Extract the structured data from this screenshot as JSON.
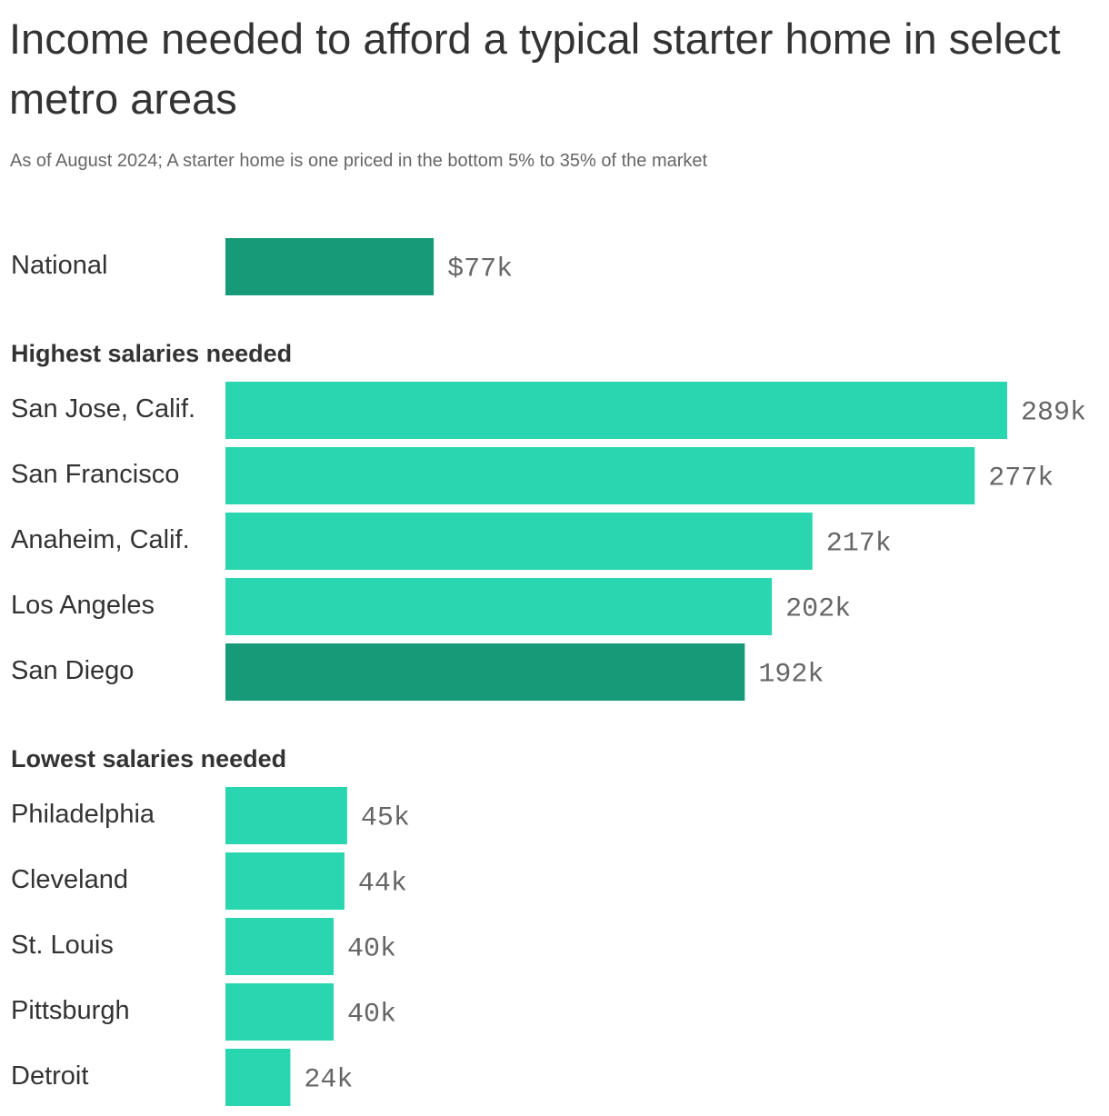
{
  "chart_data": {
    "type": "bar",
    "title": "Income needed to afford a typical starter home in select metro areas",
    "subtitle": "As of August 2024; A starter home is one priced in the bottom 5% to 35% of the market",
    "sections": [
      {
        "categories": [
          "National"
        ],
        "values": [
          77
        ],
        "value_labels": [
          "$77k"
        ],
        "colors": [
          "#179a78"
        ]
      },
      {
        "heading": "Highest salaries needed",
        "categories": [
          "San Jose, Calif.",
          "San Francisco",
          "Anaheim, Calif.",
          "Los Angeles",
          "San Diego"
        ],
        "values": [
          289,
          277,
          217,
          202,
          192
        ],
        "value_labels": [
          "289k",
          "277k",
          "217k",
          "202k",
          "192k"
        ],
        "colors": [
          "#2ad6b0",
          "#2ad6b0",
          "#2ad6b0",
          "#2ad6b0",
          "#179a78"
        ]
      },
      {
        "heading": "Lowest salaries needed",
        "categories": [
          "Philadelphia",
          "Cleveland",
          "St. Louis",
          "Pittsburgh",
          "Detroit"
        ],
        "values": [
          45,
          44,
          40,
          40,
          24
        ],
        "value_labels": [
          "45k",
          "44k",
          "40k",
          "40k",
          "24k"
        ],
        "colors": [
          "#2ad6b0",
          "#2ad6b0",
          "#2ad6b0",
          "#2ad6b0",
          "#2ad6b0"
        ]
      }
    ]
  }
}
